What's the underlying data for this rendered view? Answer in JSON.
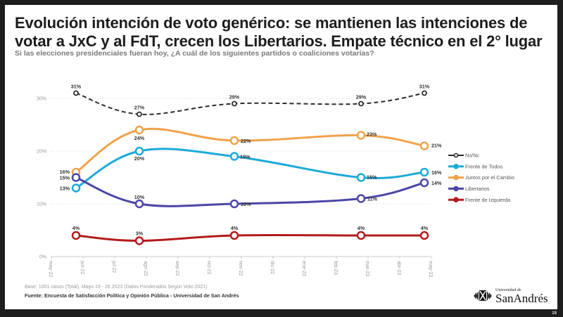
{
  "slide": {
    "title": "Evolución intención de voto genérico: se mantienen las intenciones de votar a JxC y al FdT, crecen los Libertarios. Empate técnico en el 2° lugar",
    "subtitle": "Si las elecciones presidenciales fueran hoy, ¿A cuál de los siguientes partidos o coaliciones votarías?",
    "base_note": "Base: 1001 casos (Total), Mayo 19 - 26 2023 (Datos Ponderados Según Voto 2021)",
    "source": "Fuente: Encuesta de Satisfacción Política y Opinión Pública  - Universidad de San Andrés",
    "logo_small": "Universidad de",
    "logo_big": "SanAndrés",
    "page_number": "28"
  },
  "chart_data": {
    "type": "line",
    "title": "Evolución intención de voto genérico",
    "xlabel": "",
    "ylabel": "",
    "ylim": [
      0,
      30
    ],
    "yticks": [
      0,
      10,
      20,
      30
    ],
    "ytick_labels": [
      "0%",
      "10%",
      "20%",
      "30%"
    ],
    "grid": "horizontal-dotted",
    "x_axis_months": [
      "may-22",
      "jun-22",
      "jul-22",
      "ago-22",
      "sep-22",
      "oct-22",
      "nov-22",
      "dic-22",
      "ene-23",
      "feb-23",
      "mar-23",
      "abr-23",
      "may-23"
    ],
    "x": [
      "jun-22",
      "ago-22",
      "nov-22",
      "mar-23",
      "may-23"
    ],
    "legend_position": "right",
    "series": [
      {
        "name": "Ns/Nc",
        "color": "#2b2b2b",
        "dashed": true,
        "values": [
          31,
          27,
          29,
          29,
          31
        ]
      },
      {
        "name": "Frente de Todos",
        "color": "#1caad8",
        "dashed": false,
        "values": [
          13,
          20,
          19,
          15,
          16
        ]
      },
      {
        "name": "Juntos por el Cambio",
        "color": "#f0a24a",
        "dashed": false,
        "values": [
          16,
          24,
          22,
          23,
          21
        ]
      },
      {
        "name": "Libertarios",
        "color": "#4b46a6",
        "dashed": false,
        "values": [
          15,
          10,
          10,
          11,
          14
        ]
      },
      {
        "name": "Frente de Izquierda",
        "color": "#b31b1b",
        "dashed": false,
        "values": [
          4,
          3,
          4,
          4,
          4
        ]
      }
    ]
  }
}
